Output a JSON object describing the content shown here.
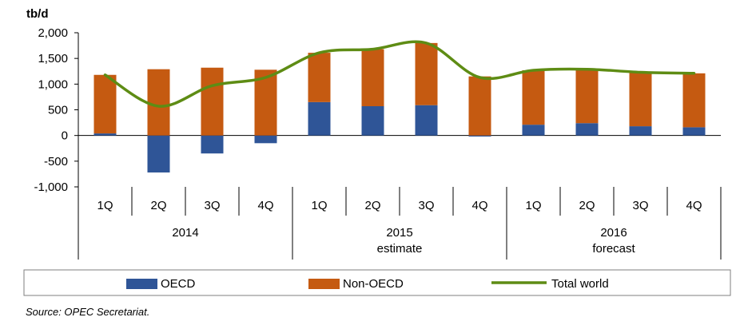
{
  "chart_data": {
    "type": "bar",
    "unit_label": "tb/d",
    "y_ticks": [
      "2,000",
      "1,500",
      "1,000",
      "500",
      "0",
      "-500",
      "-1,000"
    ],
    "ylim": [
      -1000,
      2000
    ],
    "categories": [
      "1Q",
      "2Q",
      "3Q",
      "4Q",
      "1Q",
      "2Q",
      "3Q",
      "4Q",
      "1Q",
      "2Q",
      "3Q",
      "4Q"
    ],
    "year_groups": [
      {
        "line1": "2014",
        "line2": ""
      },
      {
        "line1": "2015",
        "line2": "estimate"
      },
      {
        "line1": "2016",
        "line2": "forecast"
      }
    ],
    "series": [
      {
        "name": "OECD",
        "kind": "stacked-bar",
        "color": "#2F5597",
        "values": [
          40,
          -720,
          -350,
          -150,
          650,
          570,
          590,
          -20,
          210,
          240,
          180,
          160
        ]
      },
      {
        "name": "Non-OECD",
        "kind": "stacked-bar",
        "color": "#C55A11",
        "values": [
          1140,
          1290,
          1320,
          1280,
          960,
          1110,
          1210,
          1150,
          1060,
          1050,
          1050,
          1050
        ]
      },
      {
        "name": "Total world",
        "kind": "line",
        "color": "#5E8C14",
        "values": [
          1180,
          570,
          970,
          1130,
          1610,
          1680,
          1800,
          1130,
          1270,
          1290,
          1230,
          1210
        ]
      }
    ]
  },
  "source_note": "Source: OPEC Secretariat."
}
